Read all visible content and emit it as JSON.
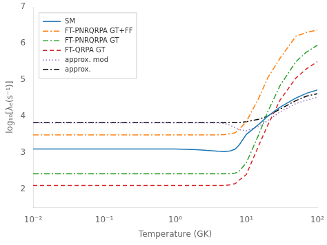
{
  "chart_data": {
    "type": "line",
    "xlabel": "Temperature (GK)",
    "ylabel": "log₁₀[λₑ(s⁻¹)]",
    "log": "x",
    "xlim": [
      0.01,
      100
    ],
    "ylim": [
      1.5,
      7
    ],
    "xticks": [
      {
        "value": 0.01,
        "label": "10⁻²"
      },
      {
        "value": 0.1,
        "label": "10⁻¹"
      },
      {
        "value": 1,
        "label": "10⁰"
      },
      {
        "value": 10,
        "label": "10¹"
      },
      {
        "value": 100,
        "label": "10²"
      }
    ],
    "yticks": [
      2,
      3,
      4,
      5,
      6,
      7
    ],
    "grid": false,
    "legend": "upper left",
    "x": [
      0.01,
      0.05,
      0.1,
      0.5,
      1.0,
      2.0,
      3.0,
      4.0,
      5.0,
      6.0,
      7.0,
      8.0,
      10.0,
      15.0,
      20.0,
      30.0,
      50.0,
      70.0,
      100.0
    ],
    "series": [
      {
        "name": "SM",
        "color": "#1f77b4",
        "line_style": "solid",
        "values": [
          3.1,
          3.1,
          3.1,
          3.1,
          3.1,
          3.08,
          3.06,
          3.04,
          3.03,
          3.05,
          3.1,
          3.22,
          3.5,
          3.78,
          4.0,
          4.25,
          4.5,
          4.63,
          4.72
        ]
      },
      {
        "name": "FT-PNRQRPA GT+FF",
        "color": "#ff7f0e",
        "line_style": "dashdot",
        "values": [
          3.49,
          3.49,
          3.49,
          3.49,
          3.49,
          3.49,
          3.49,
          3.49,
          3.5,
          3.52,
          3.55,
          3.65,
          3.85,
          4.5,
          5.05,
          5.6,
          6.2,
          6.3,
          6.37
        ]
      },
      {
        "name": "FT-PNRQRPA GT",
        "color": "#2ca02c",
        "line_style": "dashdot",
        "values": [
          2.42,
          2.42,
          2.42,
          2.42,
          2.42,
          2.42,
          2.42,
          2.42,
          2.42,
          2.42,
          2.44,
          2.5,
          2.72,
          3.5,
          4.12,
          4.85,
          5.5,
          5.76,
          5.95
        ]
      },
      {
        "name": "FT-QRPA GT",
        "color": "#d62728",
        "line_style": "dashed",
        "values": [
          2.1,
          2.1,
          2.1,
          2.1,
          2.1,
          2.1,
          2.1,
          2.1,
          2.1,
          2.12,
          2.15,
          2.25,
          2.4,
          3.2,
          3.75,
          4.45,
          5.05,
          5.3,
          5.5
        ]
      },
      {
        "name": "approx. mod",
        "color": "#9467bd",
        "line_style": "dotted",
        "values": [
          3.82,
          3.82,
          3.82,
          3.82,
          3.82,
          3.82,
          3.82,
          3.82,
          3.8,
          3.75,
          3.68,
          3.63,
          3.6,
          3.72,
          3.88,
          4.12,
          4.35,
          4.44,
          4.52
        ]
      },
      {
        "name": "approx.",
        "color": "#000000",
        "line_style": "dashdot",
        "values": [
          3.83,
          3.83,
          3.83,
          3.83,
          3.83,
          3.83,
          3.83,
          3.83,
          3.83,
          3.83,
          3.83,
          3.83,
          3.85,
          3.92,
          4.0,
          4.2,
          4.43,
          4.55,
          4.62
        ]
      }
    ]
  }
}
